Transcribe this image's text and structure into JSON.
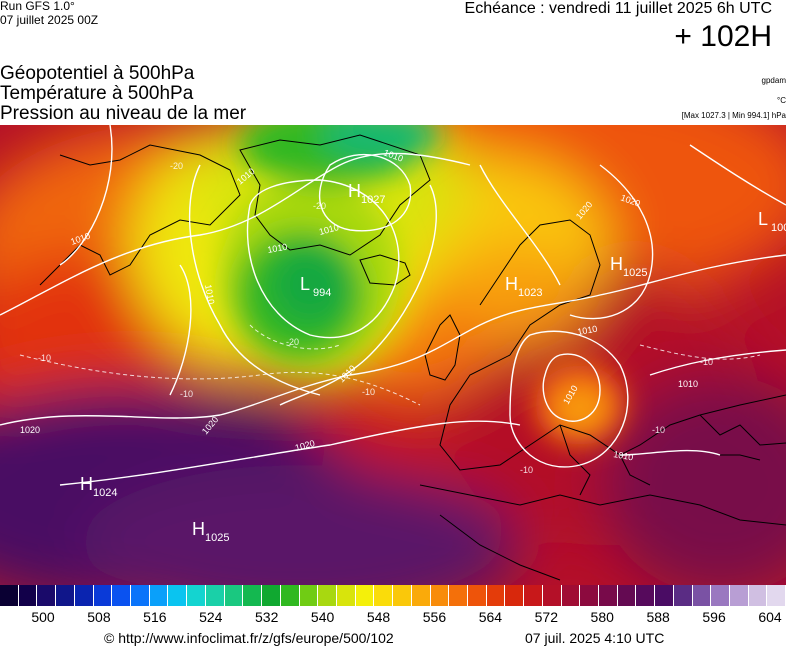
{
  "header": {
    "run_name": "Run GFS 1.0°",
    "run_date": "07 juillet 2025 00Z",
    "echeance": "Echéance : vendredi 11 juillet 2025 6h UTC",
    "forecast_hours": "+ 102H"
  },
  "titles": {
    "line1": "Géopotentiel à 500hPa",
    "line2": "Température à 500hPa",
    "line3": "Pression au niveau de la mer"
  },
  "units": {
    "geopotential": "gpdam",
    "temperature": "°C",
    "pressure_range": "[Max 1027.3 | Min 994.1] hPa"
  },
  "map": {
    "pressure_centers": [
      {
        "type": "H",
        "value": "1027"
      },
      {
        "type": "L",
        "value": "994"
      },
      {
        "type": "H",
        "value": "1023"
      },
      {
        "type": "H",
        "value": "1025"
      },
      {
        "type": "L",
        "value": "100"
      },
      {
        "type": "H",
        "value": "1024"
      },
      {
        "type": "H",
        "value": "1025"
      }
    ],
    "isobar_labels": [
      "1010",
      "1010",
      "1010",
      "1010",
      "1010",
      "1010",
      "1010",
      "1010",
      "1010",
      "1020",
      "1020",
      "1020",
      "1020",
      "1020",
      "1010",
      "1010"
    ],
    "temperature_labels": [
      "-20",
      "-20",
      "-20",
      "-10",
      "-10",
      "-10",
      "-10",
      "-10",
      "-10"
    ]
  },
  "colorbar": {
    "labels": [
      "500",
      "508",
      "516",
      "524",
      "532",
      "540",
      "548",
      "556",
      "564",
      "572",
      "580",
      "588",
      "596",
      "604"
    ],
    "colors": [
      "#0a0033",
      "#12004a",
      "#1a0a6a",
      "#10168a",
      "#0a24b0",
      "#0a3ad8",
      "#0a52f0",
      "#0a74fa",
      "#0aa0fa",
      "#0ac4f0",
      "#14d4d0",
      "#1ad0a8",
      "#1ac880",
      "#14b850",
      "#10a830",
      "#30b820",
      "#70cc14",
      "#a8d810",
      "#d8e40c",
      "#f4f00a",
      "#fadc0a",
      "#fac80a",
      "#faaa0a",
      "#f88c0a",
      "#f4700a",
      "#ee540a",
      "#e43c0a",
      "#d8280c",
      "#c8181a",
      "#b41028",
      "#a00c34",
      "#8c0a3e",
      "#780a4a",
      "#640a52",
      "#560a5c",
      "#4a0c64",
      "#5a2c84",
      "#7a52a4",
      "#9a78c0",
      "#b89ed4",
      "#d0bfe2",
      "#e2d8ee"
    ]
  },
  "footer": {
    "url": "© http://www.infoclimat.fr/z/gfs/europe/500/102",
    "date": "07 juil. 2025  4:10 UTC"
  }
}
